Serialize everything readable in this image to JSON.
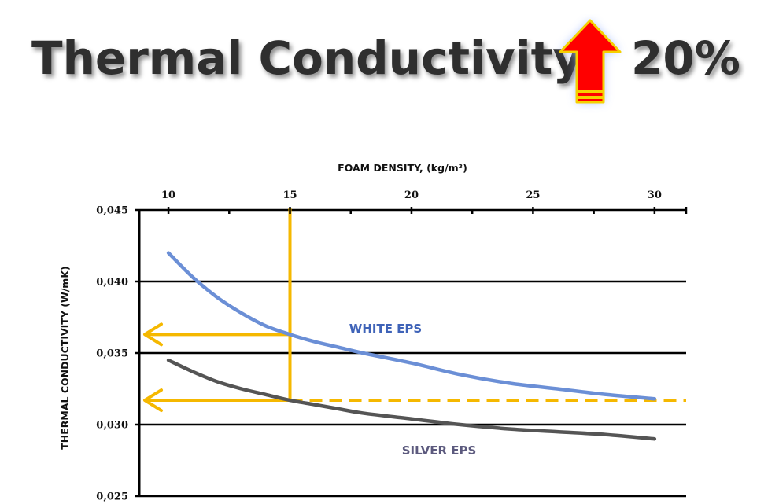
{
  "headline": {
    "title": "Thermal Conductivity",
    "change": "20%",
    "arrow_icon": "up-arrow-icon",
    "arrow_color": "#ff0000",
    "arrow_outline": "#f5d000"
  },
  "chart_data": {
    "type": "line",
    "xlabel": "FOAM DENSITY, (kg/m³)",
    "ylabel": "THERMAL CONDUCTIVITY (W/mK)",
    "xlim": [
      8.8,
      31.3
    ],
    "ylim": [
      0.025,
      0.045
    ],
    "x_ticks": [
      10,
      15,
      20,
      25,
      30
    ],
    "x_tick_labels": [
      "10",
      "15",
      "20",
      "25",
      "30"
    ],
    "x_minor_ticks": [
      12.5,
      17.5,
      22.5,
      27.5
    ],
    "y_ticks": [
      0.025,
      0.03,
      0.035,
      0.04,
      0.045
    ],
    "y_tick_labels": [
      "0,025",
      "0,030",
      "0,035",
      "0,040",
      "0,045"
    ],
    "x_axis_position": "top",
    "grid": "horizontal",
    "series": [
      {
        "name": "WHITE EPS",
        "color": "#6b8fd6",
        "label_color": "#3f63b8",
        "x": [
          10,
          11,
          12,
          13,
          14,
          15,
          16,
          17,
          18,
          20,
          22,
          24,
          26,
          28,
          30
        ],
        "y": [
          0.042,
          0.0403,
          0.0389,
          0.0378,
          0.0369,
          0.0363,
          0.0358,
          0.0354,
          0.035,
          0.0343,
          0.0335,
          0.0329,
          0.0325,
          0.0321,
          0.0318
        ]
      },
      {
        "name": "SILVER EPS",
        "color": "#555555",
        "label_color": "#5c5a7e",
        "x": [
          10,
          11,
          12,
          13,
          14,
          15,
          16,
          17,
          18,
          20,
          22,
          24,
          26,
          28,
          30
        ],
        "y": [
          0.0345,
          0.0337,
          0.033,
          0.0325,
          0.0321,
          0.0317,
          0.0314,
          0.0311,
          0.0308,
          0.0304,
          0.03,
          0.0297,
          0.0295,
          0.0293,
          0.029
        ]
      }
    ],
    "annotations": {
      "color": "#f5b800",
      "density_marker_x": 15,
      "white_eps_value": 0.0363,
      "silver_eps_value": 0.0317
    }
  }
}
